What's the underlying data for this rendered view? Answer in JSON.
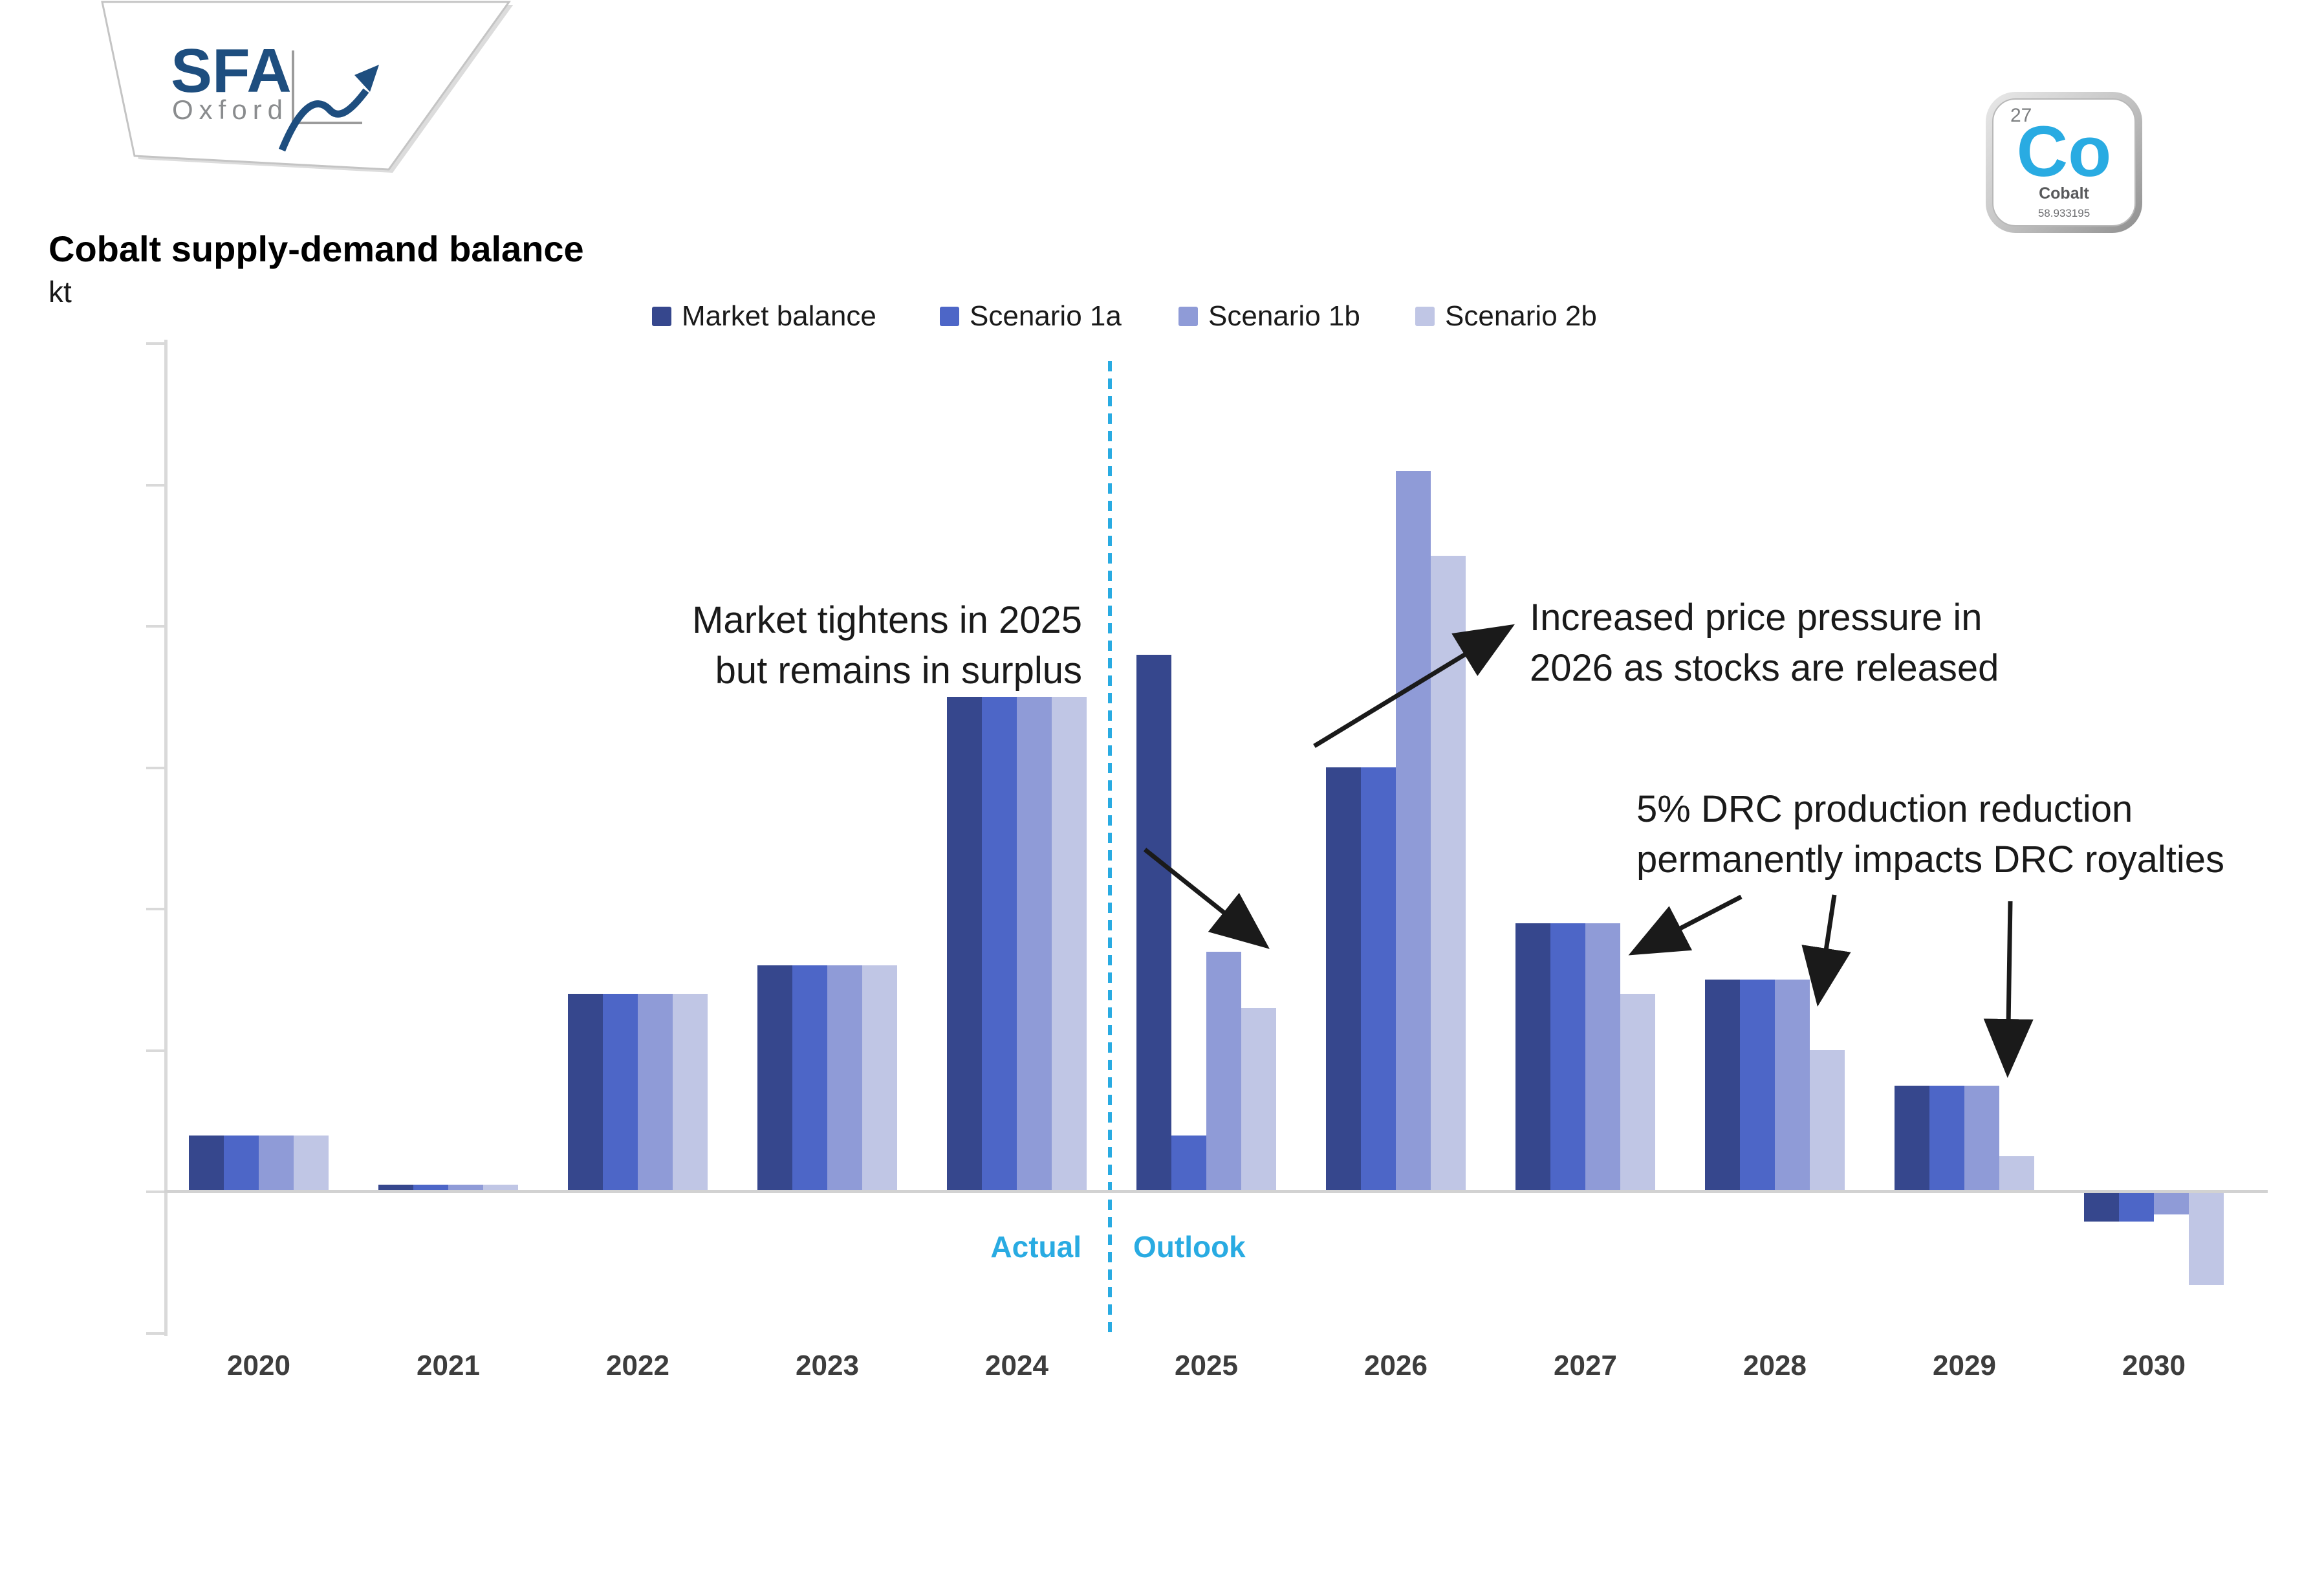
{
  "logo": {
    "brand": "SFA",
    "sub": "Oxford"
  },
  "header": {
    "title": "Cobalt supply-demand balance",
    "unit_label": "kt"
  },
  "element_tile": {
    "atomic_number": "27",
    "symbol": "Co",
    "name": "Cobalt",
    "atomic_mass": "58.933195",
    "symbol_color": "#29ABE2"
  },
  "divider": {
    "left_label": "Actual",
    "right_label": "Outlook",
    "color": "#29ABE2"
  },
  "annotations": [
    {
      "text": "Market tightens in 2025\nbut remains in surplus",
      "arrows": [
        {
          "from": [
            1770,
            1313
          ],
          "to": [
            1952,
            1458
          ]
        }
      ]
    },
    {
      "text": "Increased price pressure in\n2026 as stocks are released",
      "arrows": [
        {
          "from": [
            2032,
            1153
          ],
          "to": [
            2330,
            972
          ]
        }
      ]
    },
    {
      "text": "5% DRC production reduction\npermanently impacts DRC royalties",
      "arrows": [
        {
          "from": [
            2692,
            1386
          ],
          "to": [
            2530,
            1470
          ]
        },
        {
          "from": [
            2836,
            1383
          ],
          "to": [
            2812,
            1542
          ]
        },
        {
          "from": [
            3108,
            1393
          ],
          "to": [
            3104,
            1652
          ]
        }
      ]
    }
  ],
  "chart_data": {
    "type": "bar",
    "title": "Cobalt supply-demand balance",
    "xlabel": "",
    "ylabel": "kt",
    "categories": [
      "2020",
      "2021",
      "2022",
      "2023",
      "2024",
      "2025",
      "2026",
      "2027",
      "2028",
      "2029",
      "2030"
    ],
    "series": [
      {
        "name": "Market balance",
        "color": "#36478D",
        "values": [
          4,
          0.5,
          14,
          16,
          35,
          38,
          30,
          19,
          15,
          7.5,
          -2
        ]
      },
      {
        "name": "Scenario 1a",
        "color": "#4D66C7",
        "values": [
          4,
          0.5,
          14,
          16,
          35,
          4,
          30,
          19,
          15,
          7.5,
          -2
        ]
      },
      {
        "name": "Scenario 1b",
        "color": "#8F9BD7",
        "values": [
          4,
          0.5,
          14,
          16,
          35,
          17,
          51,
          19,
          15,
          7.5,
          -1.5
        ]
      },
      {
        "name": "Scenario 2b",
        "color": "#C0C6E5",
        "values": [
          4,
          0.5,
          14,
          16,
          35,
          13,
          45,
          14,
          10,
          2.5,
          -6.5
        ]
      }
    ],
    "ylim": [
      -10,
      60
    ],
    "ytick_step": 10,
    "yaxis_numeric_labels_visible": false,
    "grid": false,
    "legend_position": "top",
    "split": {
      "after_category": "2024",
      "left_label": "Actual",
      "right_label": "Outlook"
    }
  },
  "colors": {
    "accent_cyan": "#29ABE2",
    "axis_gray": "#d9d9d9",
    "arrow_black": "#1a1a1a",
    "logo_blue": "#1E4E7F",
    "logo_gray": "#8A8C8E"
  }
}
